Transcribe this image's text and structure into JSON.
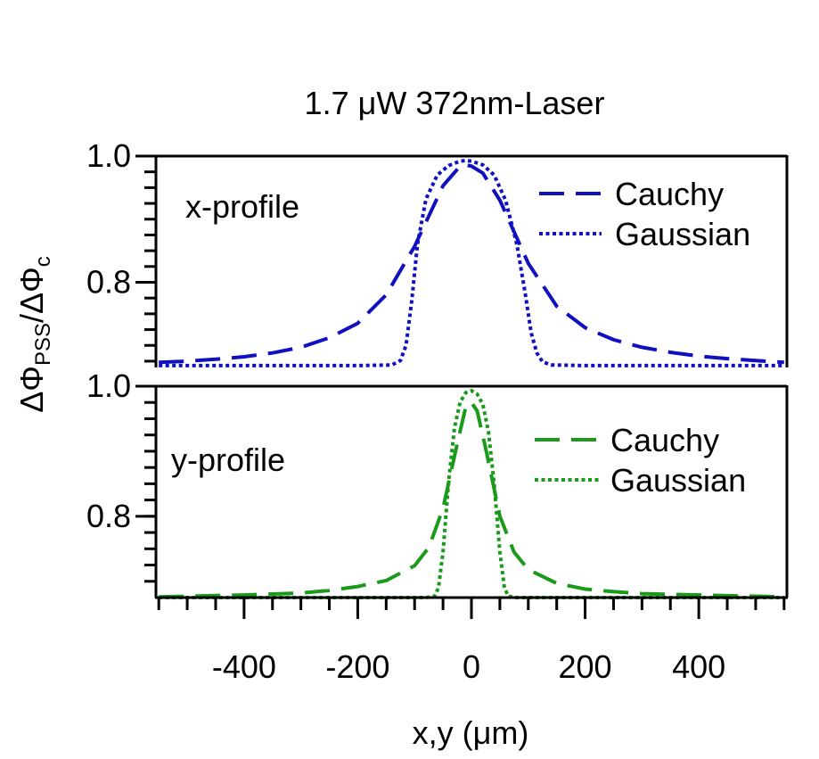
{
  "chart_data": {
    "type": "line",
    "title": "1.7 μW 372nm-Laser",
    "xlabel": "x,y (μm)",
    "ylabel": "ΔΦ_PSS/ΔΦ_c",
    "ylabel_parts": {
      "d1": "ΔΦ",
      "sub1": "PSS",
      "mid": "/ΔΦ",
      "sub2": "c"
    },
    "xlim": [
      -555,
      555
    ],
    "x_ticks": [
      -400,
      -200,
      0,
      200,
      400
    ],
    "x_tick_labels": [
      "-400",
      "-200",
      "0",
      "200",
      "400"
    ],
    "grid": false,
    "panels": [
      {
        "label": "x-profile",
        "ylim": [
          0.665,
          1.0
        ],
        "y_ticks": [
          0.8,
          1.0
        ],
        "y_tick_labels": [
          "0.8",
          "1.0"
        ],
        "legend_position": "top-right",
        "series": [
          {
            "name": "Cauchy",
            "style": "dashed",
            "color": "#1010c0",
            "x": [
              -550,
              -500,
              -450,
              -400,
              -350,
              -300,
              -250,
              -200,
              -150,
              -100,
              -50,
              -20,
              -10,
              0,
              20,
              50,
              100,
              150,
              200,
              250,
              300,
              350,
              400,
              450,
              500,
              550
            ],
            "y": [
              0.673,
              0.675,
              0.678,
              0.682,
              0.688,
              0.697,
              0.712,
              0.735,
              0.78,
              0.857,
              0.953,
              0.984,
              0.986,
              0.984,
              0.973,
              0.93,
              0.83,
              0.762,
              0.728,
              0.709,
              0.697,
              0.689,
              0.683,
              0.679,
              0.676,
              0.673
            ]
          },
          {
            "name": "Gaussian",
            "style": "dotted",
            "color": "#1010c0",
            "x": [
              -550,
              -200,
              -140,
              -125,
              -115,
              -105,
              -95,
              -80,
              -60,
              -40,
              -20,
              -10,
              0,
              20,
              40,
              60,
              80,
              95,
              105,
              115,
              125,
              140,
              200,
              550
            ],
            "y": [
              0.668,
              0.668,
              0.669,
              0.676,
              0.7,
              0.77,
              0.86,
              0.932,
              0.97,
              0.985,
              0.992,
              0.993,
              0.992,
              0.986,
              0.97,
              0.93,
              0.86,
              0.78,
              0.72,
              0.688,
              0.674,
              0.669,
              0.668,
              0.668
            ]
          }
        ]
      },
      {
        "label": "y-profile",
        "ylim": [
          0.675,
          1.0
        ],
        "y_ticks": [
          0.8,
          1.0
        ],
        "y_tick_labels": [
          "0.8",
          "1.0"
        ],
        "legend_position": "top-right",
        "series": [
          {
            "name": "Cauchy",
            "style": "dashed",
            "color": "#1a9a1a",
            "x": [
              -550,
              -500,
              -400,
              -300,
              -250,
              -200,
              -150,
              -100,
              -75,
              -50,
              -25,
              -10,
              0,
              10,
              25,
              50,
              75,
              100,
              150,
              200,
              250,
              300,
              400,
              500,
              550
            ],
            "y": [
              0.676,
              0.677,
              0.679,
              0.682,
              0.686,
              0.692,
              0.701,
              0.724,
              0.752,
              0.812,
              0.912,
              0.968,
              0.975,
              0.962,
              0.905,
              0.8,
              0.745,
              0.718,
              0.697,
              0.688,
              0.684,
              0.681,
              0.679,
              0.677,
              0.676
            ]
          },
          {
            "name": "Gaussian",
            "style": "dotted",
            "color": "#1a9a1a",
            "x": [
              -550,
              -80,
              -65,
              -58,
              -50,
              -40,
              -30,
              -20,
              -10,
              0,
              10,
              20,
              30,
              40,
              50,
              58,
              65,
              80,
              550
            ],
            "y": [
              0.675,
              0.675,
              0.677,
              0.69,
              0.745,
              0.855,
              0.935,
              0.975,
              0.99,
              0.993,
              0.988,
              0.972,
              0.93,
              0.85,
              0.745,
              0.69,
              0.677,
              0.675,
              0.675
            ]
          }
        ]
      }
    ]
  }
}
